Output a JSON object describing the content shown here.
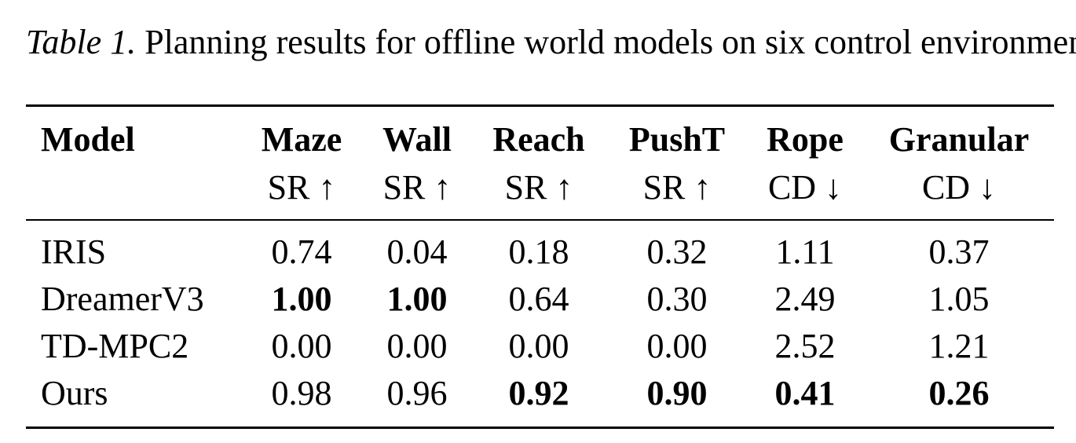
{
  "caption": {
    "label": "Table 1.",
    "text": " Planning results for offline world models on six control environments."
  },
  "table": {
    "columns": [
      {
        "name": "Model",
        "metric": ""
      },
      {
        "name": "Maze",
        "metric": "SR ↑"
      },
      {
        "name": "Wall",
        "metric": "SR ↑"
      },
      {
        "name": "Reach",
        "metric": "SR ↑"
      },
      {
        "name": "PushT",
        "metric": "SR ↑"
      },
      {
        "name": "Rope",
        "metric": "CD ↓"
      },
      {
        "name": "Granular",
        "metric": "CD ↓"
      }
    ],
    "rows": [
      {
        "model": "IRIS",
        "values": [
          "0.74",
          "0.04",
          "0.18",
          "0.32",
          "1.11",
          "0.37"
        ],
        "bold": [
          false,
          false,
          false,
          false,
          false,
          false
        ]
      },
      {
        "model": "DreamerV3",
        "values": [
          "1.00",
          "1.00",
          "0.64",
          "0.30",
          "2.49",
          "1.05"
        ],
        "bold": [
          true,
          true,
          false,
          false,
          false,
          false
        ]
      },
      {
        "model": "TD-MPC2",
        "values": [
          "0.00",
          "0.00",
          "0.00",
          "0.00",
          "2.52",
          "1.21"
        ],
        "bold": [
          false,
          false,
          false,
          false,
          false,
          false
        ]
      },
      {
        "model": "Ours",
        "values": [
          "0.98",
          "0.96",
          "0.92",
          "0.90",
          "0.41",
          "0.26"
        ],
        "bold": [
          false,
          false,
          true,
          true,
          true,
          true
        ]
      }
    ]
  }
}
